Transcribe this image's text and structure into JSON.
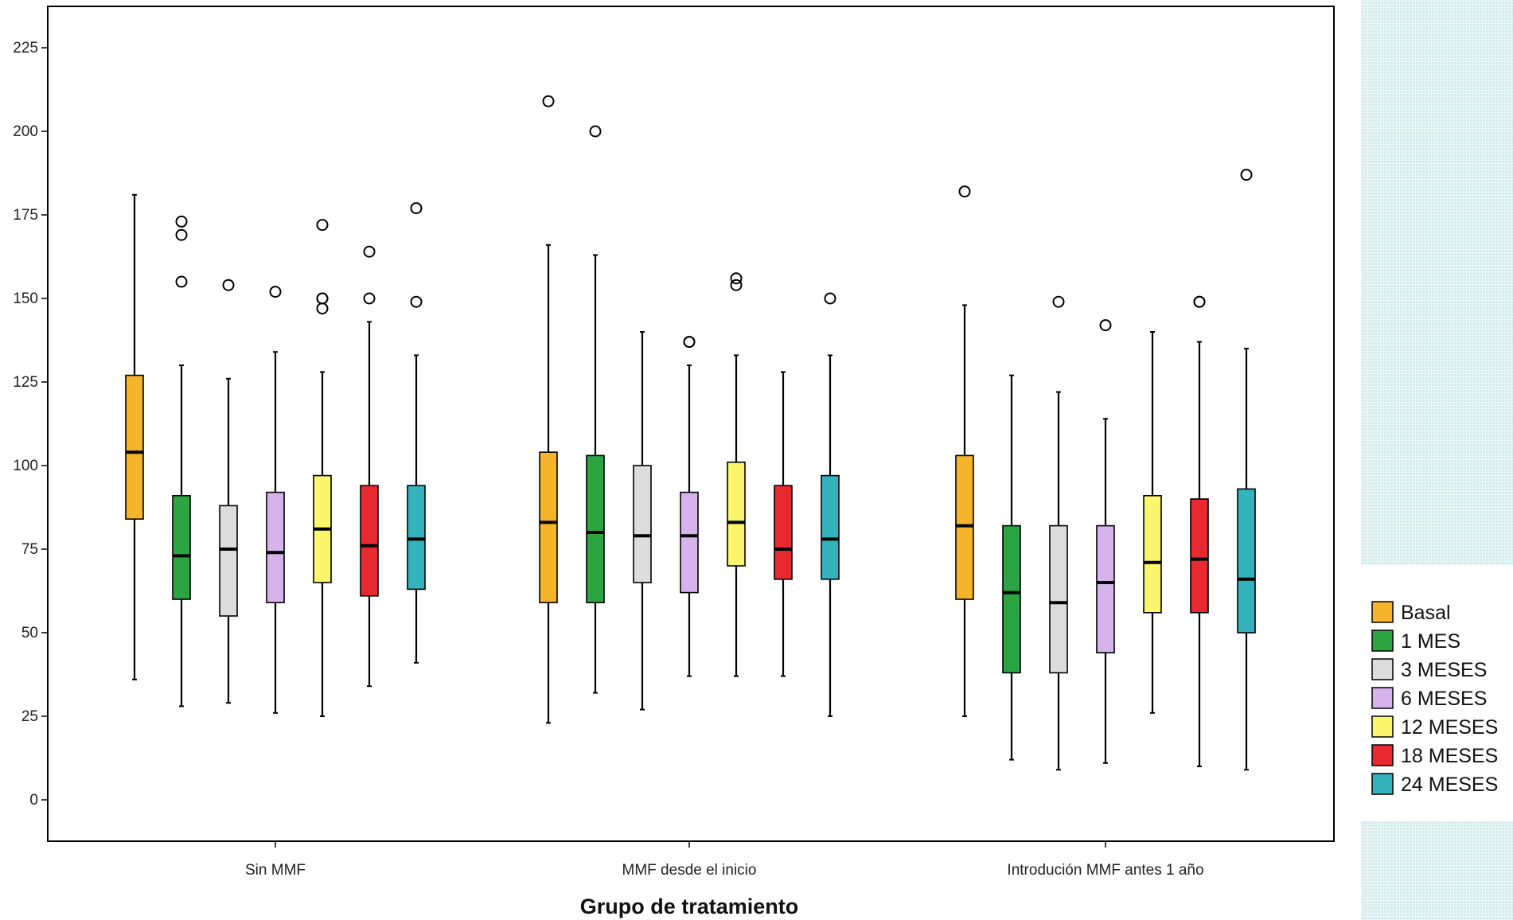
{
  "chart_data": {
    "type": "boxplot",
    "xlabel": "Grupo de tratamiento",
    "ylabel": "",
    "ylim": [
      -12,
      237
    ],
    "yticks": [
      0,
      25,
      50,
      75,
      100,
      125,
      150,
      175,
      200,
      225
    ],
    "legend_position": "right",
    "categories": [
      "Sin MMF",
      "MMF desde el inicio",
      "Introdución MMF antes 1 año"
    ],
    "series": [
      {
        "name": "Basal",
        "color": "#f5b42a",
        "values": [
          {
            "min": 36,
            "q1": 84,
            "median": 104,
            "q3": 127,
            "max": 181,
            "outliers": []
          },
          {
            "min": 23,
            "q1": 59,
            "median": 83,
            "q3": 104,
            "max": 166,
            "outliers": [
              209
            ]
          },
          {
            "min": 25,
            "q1": 60,
            "median": 82,
            "q3": 103,
            "max": 148,
            "outliers": [
              182
            ]
          }
        ]
      },
      {
        "name": "1 MES",
        "color": "#2ca442",
        "values": [
          {
            "min": 28,
            "q1": 60,
            "median": 73,
            "q3": 91,
            "max": 130,
            "outliers": [
              155,
              169,
              173
            ]
          },
          {
            "min": 32,
            "q1": 59,
            "median": 80,
            "q3": 103,
            "max": 163,
            "outliers": [
              200
            ]
          },
          {
            "min": 12,
            "q1": 38,
            "median": 62,
            "q3": 82,
            "max": 127,
            "outliers": []
          }
        ]
      },
      {
        "name": "3 MESES",
        "color": "#dcdcdc",
        "values": [
          {
            "min": 29,
            "q1": 55,
            "median": 75,
            "q3": 88,
            "max": 126,
            "outliers": [
              154
            ]
          },
          {
            "min": 27,
            "q1": 65,
            "median": 79,
            "q3": 100,
            "max": 140,
            "outliers": []
          },
          {
            "min": 9,
            "q1": 38,
            "median": 59,
            "q3": 82,
            "max": 122,
            "outliers": [
              149
            ]
          }
        ]
      },
      {
        "name": "6 MESES",
        "color": "#d7b3ec",
        "values": [
          {
            "min": 26,
            "q1": 59,
            "median": 74,
            "q3": 92,
            "max": 134,
            "outliers": [
              152
            ]
          },
          {
            "min": 37,
            "q1": 62,
            "median": 79,
            "q3": 92,
            "max": 130,
            "outliers": [
              137,
              137
            ]
          },
          {
            "min": 11,
            "q1": 44,
            "median": 65,
            "q3": 82,
            "max": 114,
            "outliers": [
              142
            ]
          }
        ]
      },
      {
        "name": "12 MESES",
        "color": "#fbf66c",
        "values": [
          {
            "min": 25,
            "q1": 65,
            "median": 81,
            "q3": 97,
            "max": 128,
            "outliers": [
              147,
              150,
              150,
              172
            ]
          },
          {
            "min": 37,
            "q1": 70,
            "median": 83,
            "q3": 101,
            "max": 133,
            "outliers": [
              154,
              156
            ]
          },
          {
            "min": 26,
            "q1": 56,
            "median": 71,
            "q3": 91,
            "max": 140,
            "outliers": []
          }
        ]
      },
      {
        "name": "18 MESES",
        "color": "#e8292f",
        "values": [
          {
            "min": 34,
            "q1": 61,
            "median": 76,
            "q3": 94,
            "max": 143,
            "outliers": [
              150,
              164
            ]
          },
          {
            "min": 37,
            "q1": 66,
            "median": 75,
            "q3": 94,
            "max": 128,
            "outliers": []
          },
          {
            "min": 10,
            "q1": 56,
            "median": 72,
            "q3": 90,
            "max": 137,
            "outliers": [
              149,
              149
            ]
          }
        ]
      },
      {
        "name": "24 MESES",
        "color": "#34b3bd",
        "values": [
          {
            "min": 41,
            "q1": 63,
            "median": 78,
            "q3": 94,
            "max": 133,
            "outliers": [
              149,
              177
            ]
          },
          {
            "min": 25,
            "q1": 66,
            "median": 78,
            "q3": 97,
            "max": 133,
            "outliers": [
              150
            ]
          },
          {
            "min": 9,
            "q1": 50,
            "median": 66,
            "q3": 93,
            "max": 135,
            "outliers": [
              187
            ]
          }
        ]
      }
    ]
  }
}
